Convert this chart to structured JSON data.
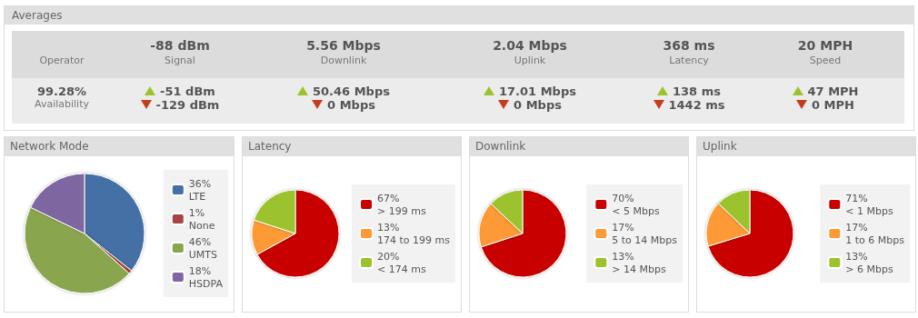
{
  "chart_data": [
    {
      "type": "other",
      "title": "Averages",
      "annotations": [
        "Operator",
        "-88 dBm",
        "Signal",
        "5.56 Mbps",
        "Downlink",
        "2.04 Mbps",
        "Uplink",
        "368 ms",
        "Latency",
        "20 MPH",
        "Speed",
        "99.28%",
        "Availability",
        "-51 dBm",
        "-129 dBm",
        "50.46 Mbps",
        "0 Mbps",
        "17.01 Mbps",
        "0 Mbps",
        "138 ms",
        "1442 ms",
        "47 MPH",
        "0 MPH"
      ]
    },
    {
      "type": "pie",
      "title": "Network Mode",
      "categories": [
        "LTE",
        "None",
        "UMTS",
        "HSDPA"
      ],
      "values": [
        36,
        1,
        46,
        18
      ],
      "value_labels": [
        "36%",
        "1%",
        "46%",
        "18%"
      ],
      "colors": [
        "#4470a6",
        "#a94444",
        "#89a64f",
        "#7e66a0"
      ],
      "legend": "right"
    },
    {
      "type": "pie",
      "title": "Latency",
      "categories": [
        "> 199 ms",
        "174 to 199 ms",
        "< 174 ms"
      ],
      "values": [
        67,
        13,
        20
      ],
      "value_labels": [
        "67%",
        "13%",
        "20%"
      ],
      "colors": [
        "#c80000",
        "#fd9a35",
        "#9cc32e"
      ],
      "legend": "right"
    },
    {
      "type": "pie",
      "title": "Downlink",
      "categories": [
        "< 5 Mbps",
        "5 to 14 Mbps",
        "> 14 Mbps"
      ],
      "values": [
        70,
        17,
        13
      ],
      "value_labels": [
        "70%",
        "17%",
        "13%"
      ],
      "colors": [
        "#c80000",
        "#fd9a35",
        "#9cc32e"
      ],
      "legend": "right"
    },
    {
      "type": "pie",
      "title": "Uplink",
      "categories": [
        "< 1 Mbps",
        "1 to 6 Mbps",
        "> 6 Mbps"
      ],
      "values": [
        71,
        17,
        13
      ],
      "value_labels": [
        "71%",
        "17%",
        "13%"
      ],
      "colors": [
        "#c80000",
        "#fd9a35",
        "#9cc32e"
      ],
      "legend": "right"
    }
  ]
}
